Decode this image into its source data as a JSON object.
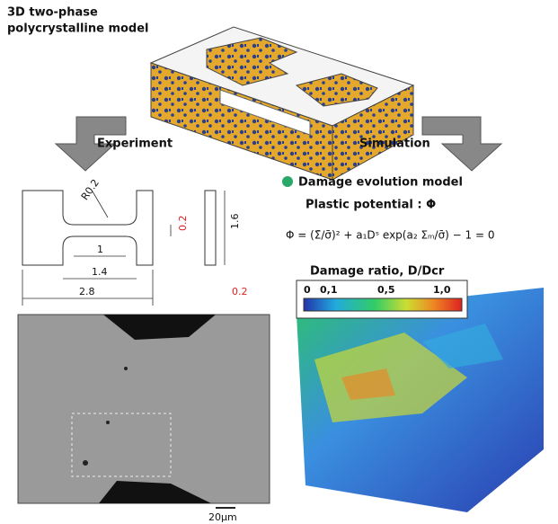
{
  "header": {
    "title_lines": [
      "3D two-phase",
      "polycrystalline model"
    ]
  },
  "branches": {
    "left": "Experiment",
    "right": "Simulation"
  },
  "specimen": {
    "labels": [
      "R0.2",
      "0.2",
      "1.6",
      "1",
      "1.4",
      "2.8",
      "0.2"
    ]
  },
  "micrograph": {
    "scale": "20μm"
  },
  "model": {
    "heading": "Damage evolution model",
    "potential": "Plastic potential : Φ",
    "equation": "Φ = (Σ̄/σ̄)² + a₁Dˢ exp(a₂ Σₘ/σ̄) − 1 = 0",
    "colorbar_title": "Damage ratio, D/Dcr",
    "colorbar_labels": [
      "0",
      "0,1",
      "0,5",
      "1,0"
    ]
  }
}
